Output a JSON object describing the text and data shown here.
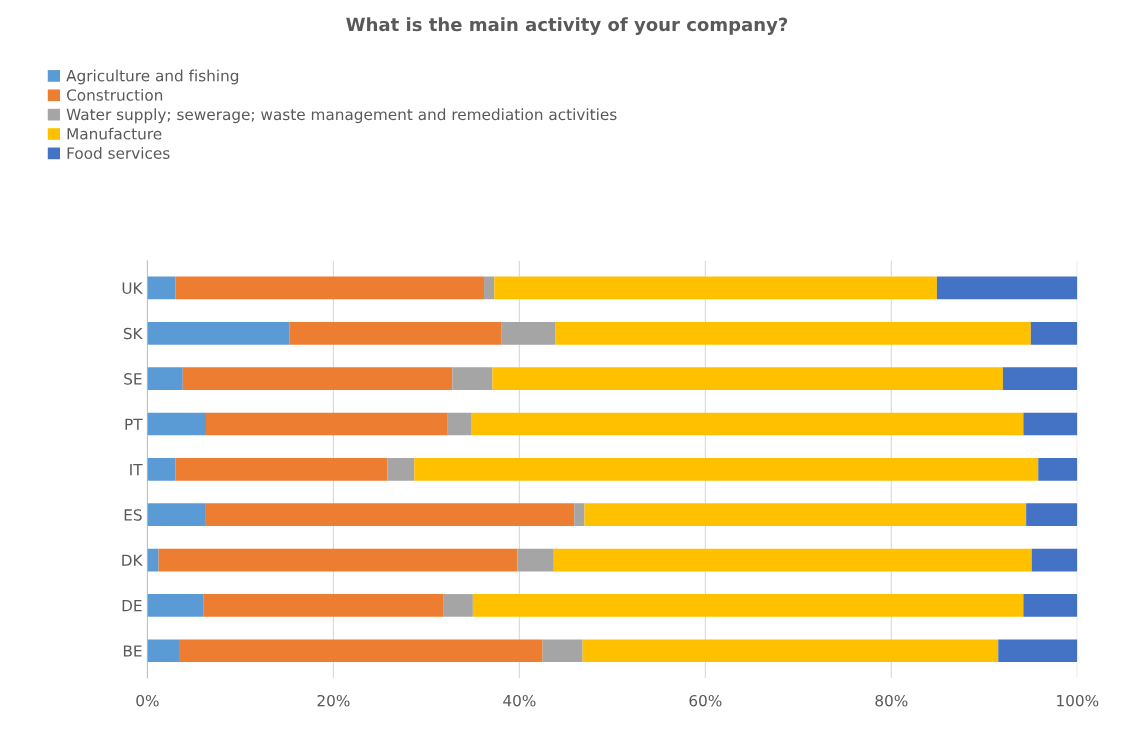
{
  "chart_data": {
    "type": "bar",
    "orientation": "horizontal",
    "stacked": true,
    "title": "What is the main activity of your company?",
    "categories": [
      "UK",
      "SK",
      "SE",
      "PT",
      "IT",
      "ES",
      "DK",
      "DE",
      "BE"
    ],
    "series": [
      {
        "name": "Agriculture and fishing",
        "color": "#5b9bd5",
        "values": [
          3.0,
          15.3,
          3.8,
          6.3,
          3.0,
          6.2,
          1.2,
          6.0,
          3.4
        ]
      },
      {
        "name": "Construction",
        "color": "#ed7d31",
        "values": [
          33.2,
          22.8,
          29.0,
          26.0,
          22.8,
          39.7,
          38.6,
          25.8,
          39.1
        ]
      },
      {
        "name": "Water supply; sewerage; waste management and remediation activities",
        "color": "#a5a5a5",
        "values": [
          1.1,
          5.8,
          4.3,
          2.5,
          2.9,
          1.1,
          3.9,
          3.2,
          4.3
        ]
      },
      {
        "name": "Manufacture",
        "color": "#ffc000",
        "values": [
          47.6,
          51.1,
          54.9,
          59.4,
          67.1,
          47.5,
          51.4,
          59.2,
          44.7
        ]
      },
      {
        "name": "Food services",
        "color": "#4472c4",
        "values": [
          15.1,
          5.0,
          8.0,
          5.8,
          4.2,
          5.5,
          4.9,
          5.8,
          8.5
        ]
      }
    ],
    "xlim": [
      0,
      100
    ],
    "xticks": [
      {
        "value": 0,
        "label": "0%"
      },
      {
        "value": 20,
        "label": "20%"
      },
      {
        "value": 40,
        "label": "40%"
      },
      {
        "value": 60,
        "label": "60%"
      },
      {
        "value": 80,
        "label": "80%"
      },
      {
        "value": 100,
        "label": "100%"
      }
    ],
    "grid": "x",
    "legend": "top left"
  }
}
